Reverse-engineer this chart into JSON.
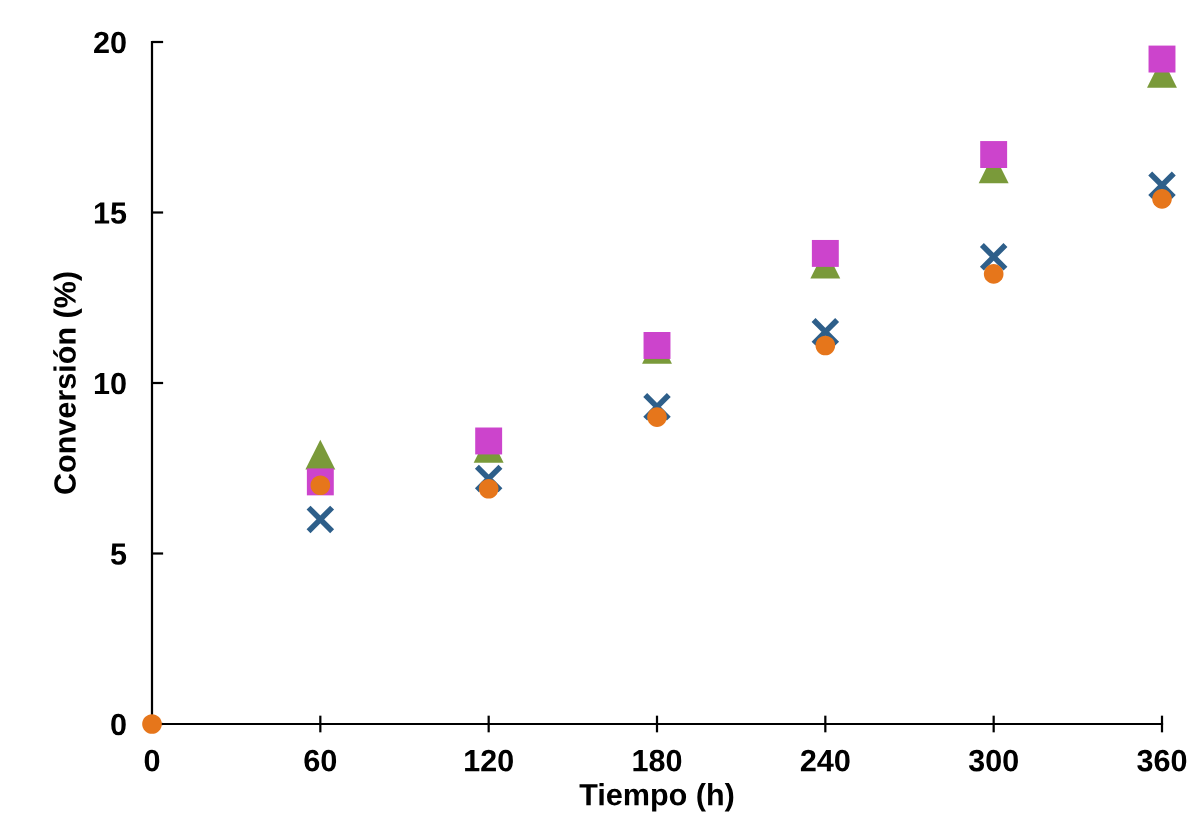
{
  "chart_data": {
    "type": "scatter",
    "xlabel": "Tiempo (h)",
    "ylabel": "Conversión (%)",
    "x": [
      0,
      60,
      120,
      180,
      240,
      300,
      360
    ],
    "series": [
      {
        "color": "#7a9a3a",
        "marker": "triangle",
        "values": [
          null,
          7.9,
          8.1,
          11.0,
          13.5,
          16.3,
          19.1
        ]
      },
      {
        "color": "#cc44cc",
        "marker": "square",
        "values": [
          null,
          7.1,
          8.3,
          11.1,
          13.8,
          16.7,
          19.5
        ]
      },
      {
        "color": "#2e5f8a",
        "marker": "cross",
        "values": [
          null,
          6.0,
          7.2,
          9.3,
          11.5,
          13.7,
          15.8
        ]
      },
      {
        "color": "#e6761b",
        "marker": "circle",
        "values": [
          0,
          7.0,
          6.9,
          9.0,
          11.1,
          13.2,
          15.4
        ]
      }
    ],
    "xlim": [
      0,
      360
    ],
    "xticks": [
      0,
      60,
      120,
      180,
      240,
      300,
      360
    ],
    "ylim": [
      0,
      20
    ],
    "yticks": [
      0,
      5,
      10,
      15,
      20
    ],
    "grid": false
  }
}
